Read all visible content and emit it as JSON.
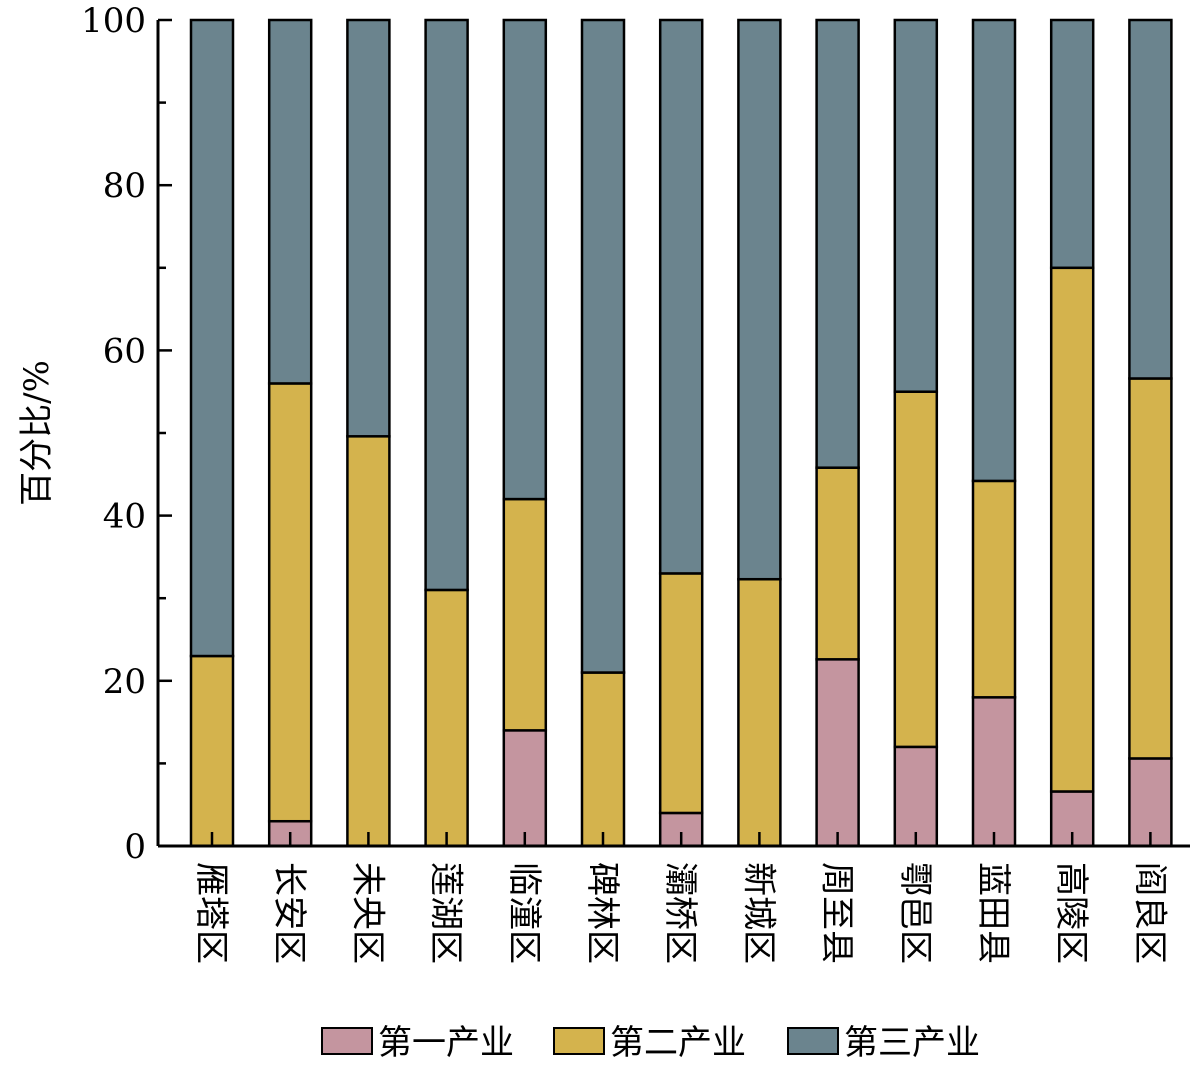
{
  "chart_data": {
    "type": "bar",
    "stacked": true,
    "categories": [
      "雁塔区",
      "长安区",
      "未央区",
      "莲湖区",
      "临潼区",
      "碑林区",
      "灞桥区",
      "新城区",
      "周至县",
      "鄠邑区",
      "蓝田县",
      "高陵区",
      "阎良区"
    ],
    "series": [
      {
        "name": "第一产业",
        "color": "#c4959f",
        "values": [
          0,
          3,
          0,
          0,
          14,
          0,
          4,
          0,
          22.6,
          12,
          18,
          6.6,
          10.6
        ]
      },
      {
        "name": "第二产业",
        "color": "#d4b34d",
        "values": [
          23,
          53,
          49.6,
          31,
          28,
          21,
          29,
          32.3,
          23.2,
          43,
          26.2,
          63.4,
          46
        ]
      },
      {
        "name": "第三产业",
        "color": "#6b848e",
        "values": [
          77,
          44,
          50.4,
          69,
          58,
          79,
          67,
          67.7,
          54.2,
          45,
          55.8,
          30,
          43.4
        ]
      }
    ],
    "ylabel": "百分比/%",
    "ylim": [
      0,
      100
    ],
    "yticks": [
      0,
      20,
      40,
      60,
      80,
      100
    ],
    "grid": false,
    "legend": "bottom"
  }
}
